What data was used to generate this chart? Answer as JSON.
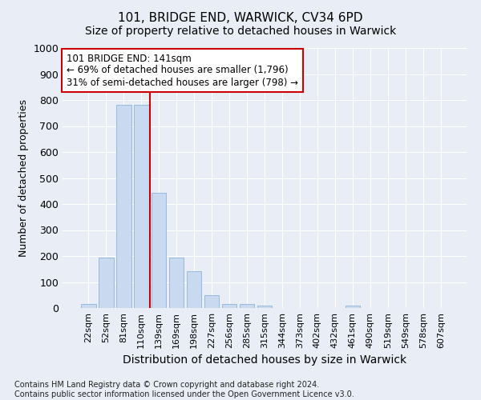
{
  "title": "101, BRIDGE END, WARWICK, CV34 6PD",
  "subtitle": "Size of property relative to detached houses in Warwick",
  "xlabel": "Distribution of detached houses by size in Warwick",
  "ylabel": "Number of detached properties",
  "footer_line1": "Contains HM Land Registry data © Crown copyright and database right 2024.",
  "footer_line2": "Contains public sector information licensed under the Open Government Licence v3.0.",
  "annotation_line1": "101 BRIDGE END: 141sqm",
  "annotation_line2": "← 69% of detached houses are smaller (1,796)",
  "annotation_line3": "31% of semi-detached houses are larger (798) →",
  "bar_color": "#c8d9f0",
  "bar_edge_color": "#8ab4dc",
  "vline_color": "#cc0000",
  "vline_x_index": 3.5,
  "categories": [
    "22sqm",
    "52sqm",
    "81sqm",
    "110sqm",
    "139sqm",
    "169sqm",
    "198sqm",
    "227sqm",
    "256sqm",
    "285sqm",
    "315sqm",
    "344sqm",
    "373sqm",
    "402sqm",
    "432sqm",
    "461sqm",
    "490sqm",
    "519sqm",
    "549sqm",
    "578sqm",
    "607sqm"
  ],
  "values": [
    15,
    193,
    783,
    783,
    443,
    193,
    143,
    50,
    15,
    15,
    10,
    0,
    0,
    0,
    0,
    8,
    0,
    0,
    0,
    0,
    0
  ],
  "ylim": [
    0,
    1000
  ],
  "yticks": [
    0,
    100,
    200,
    300,
    400,
    500,
    600,
    700,
    800,
    900,
    1000
  ],
  "background_color": "#e8edf6",
  "grid_color": "#ffffff",
  "title_fontsize": 11,
  "subtitle_fontsize": 10,
  "xlabel_fontsize": 10,
  "ylabel_fontsize": 9,
  "tick_fontsize": 8,
  "footer_fontsize": 7,
  "annotation_fontsize": 8.5
}
